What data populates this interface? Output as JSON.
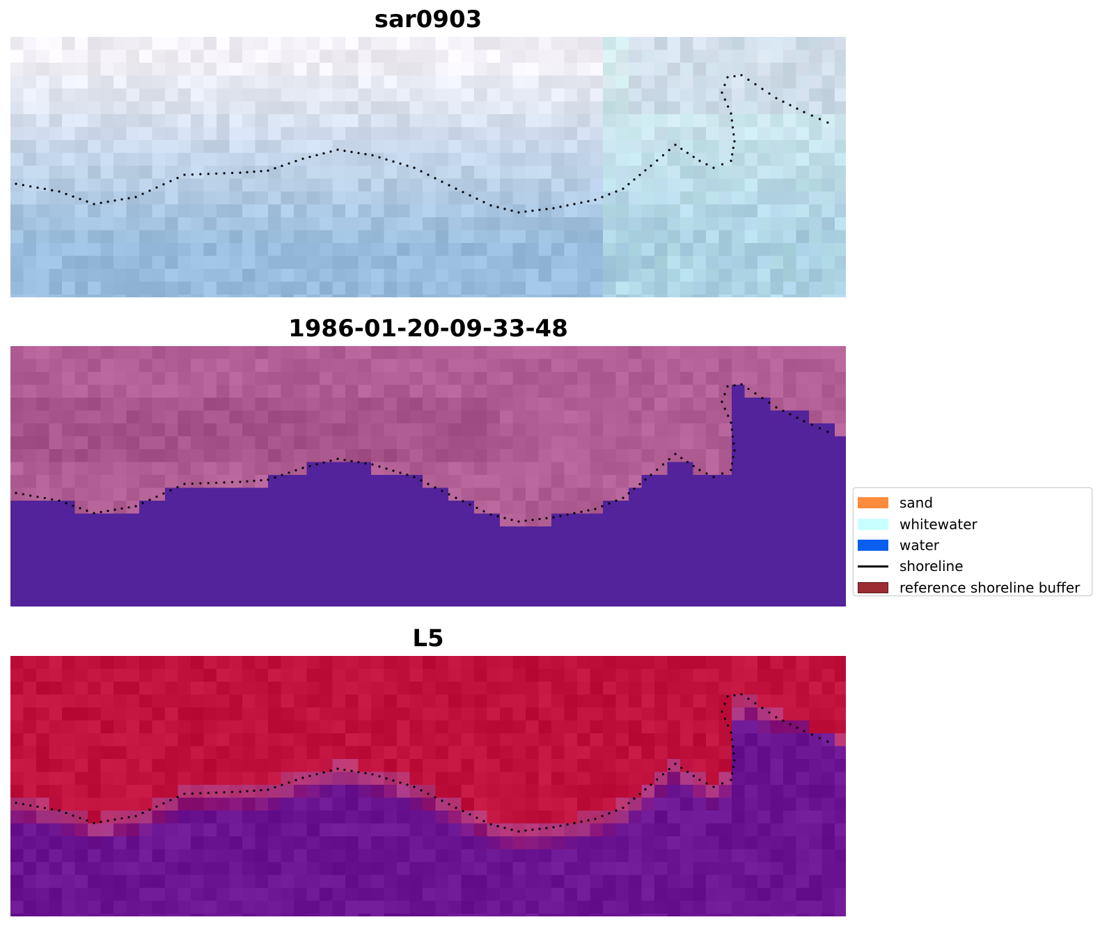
{
  "panels": [
    {
      "title": "sar0903",
      "style": "sar"
    },
    {
      "title": "1986-01-20-09-33-48",
      "style": "classified"
    },
    {
      "title": "L5",
      "style": "probability"
    }
  ],
  "legend": {
    "items": [
      {
        "label": "sand",
        "kind": "patch",
        "color": "#ff8c3c"
      },
      {
        "label": "whitewater",
        "kind": "patch",
        "color": "#c8ffff"
      },
      {
        "label": "water",
        "kind": "patch",
        "color": "#0a5ff0"
      },
      {
        "label": "shoreline",
        "kind": "line",
        "color": "#000000"
      },
      {
        "label": "reference shoreline buffer",
        "kind": "patch",
        "color": "#9b2d32"
      }
    ]
  },
  "colors": {
    "sar_light": "#f2f0f6",
    "sar_blue": "#98bcdd",
    "sar_cyan": "#bfeaea",
    "class_land": "#b25f95",
    "class_water": "#52239a",
    "prob_land": "#c0103c",
    "prob_water": "#6b1593",
    "shoreline_dots": "#000000"
  }
}
